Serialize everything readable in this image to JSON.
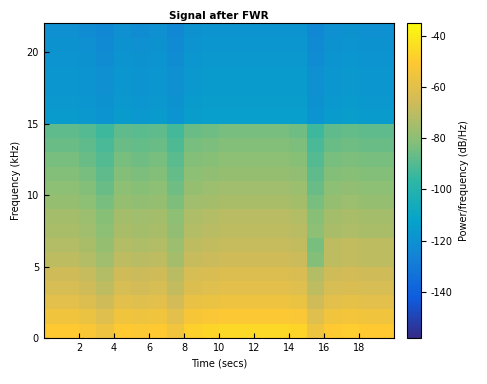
{
  "chart_data": {
    "type": "heatmap",
    "title": "Signal after FWR",
    "x_label": "Time (secs)",
    "y_label": "Frequency (kHz)",
    "xlim": [
      0,
      20
    ],
    "ylim": [
      0,
      22.05
    ],
    "xticks": [
      2,
      4,
      6,
      8,
      10,
      12,
      14,
      16,
      18
    ],
    "yticks": [
      0,
      5,
      10,
      15,
      20
    ],
    "time_edges": [
      0,
      1,
      2,
      3,
      4,
      5,
      6,
      7,
      8,
      9,
      10,
      11,
      12,
      13,
      14,
      15,
      16,
      17,
      18,
      19,
      20
    ],
    "frequency_edges": [
      0,
      1,
      2,
      3,
      4,
      5,
      6,
      7,
      8,
      9,
      10,
      11,
      12,
      13,
      14,
      15,
      16,
      17,
      18,
      19,
      20,
      21,
      22.05
    ],
    "cells": [
      [
        -50,
        -50,
        -52,
        -56,
        -50,
        -51,
        -50,
        -55,
        -48,
        -47,
        -46,
        -46,
        -46,
        -46,
        -47,
        -56,
        -50,
        -49,
        -50,
        -50
      ],
      [
        -55,
        -55,
        -57,
        -61,
        -55,
        -56,
        -55,
        -60,
        -53,
        -52,
        -51,
        -51,
        -51,
        -51,
        -52,
        -61,
        -55,
        -54,
        -55,
        -55
      ],
      [
        -60,
        -60,
        -62,
        -66,
        -60,
        -61,
        -60,
        -65,
        -58,
        -57,
        -56,
        -56,
        -56,
        -56,
        -57,
        -66,
        -60,
        -59,
        -60,
        -60
      ],
      [
        -64,
        -64,
        -66,
        -70,
        -64,
        -65,
        -64,
        -69,
        -62,
        -61,
        -60,
        -60,
        -60,
        -60,
        -61,
        -70,
        -64,
        -63,
        -64,
        -64
      ],
      [
        -66,
        -66,
        -68,
        -72,
        -66,
        -67,
        -66,
        -71,
        -64,
        -63,
        -62,
        -62,
        -62,
        -62,
        -63,
        -72,
        -66,
        -65,
        -66,
        -66
      ],
      [
        -70,
        -70,
        -72,
        -76,
        -70,
        -71,
        -70,
        -75,
        -68,
        -67,
        -66,
        -66,
        -66,
        -66,
        -67,
        -82,
        -70,
        -69,
        -70,
        -70
      ],
      [
        -72,
        -72,
        -74,
        -78,
        -72,
        -73,
        -72,
        -77,
        -70,
        -69,
        -68,
        -68,
        -68,
        -68,
        -69,
        -84,
        -70,
        -69,
        -70,
        -70
      ],
      [
        -74,
        -74,
        -76,
        -80,
        -74,
        -75,
        -74,
        -79,
        -72,
        -71,
        -70,
        -70,
        -70,
        -70,
        -71,
        -80,
        -74,
        -73,
        -74,
        -74
      ],
      [
        -75,
        -75,
        -77,
        -81,
        -75,
        -76,
        -75,
        -80,
        -73,
        -72,
        -71,
        -71,
        -71,
        -71,
        -72,
        -81,
        -75,
        -74,
        -75,
        -75
      ],
      [
        -78,
        -78,
        -80,
        -84,
        -78,
        -79,
        -78,
        -83,
        -76,
        -75,
        -74,
        -74,
        -74,
        -74,
        -75,
        -84,
        -78,
        -77,
        -78,
        -78
      ],
      [
        -80,
        -80,
        -82,
        -86,
        -80,
        -81,
        -80,
        -85,
        -78,
        -77,
        -76,
        -76,
        -76,
        -76,
        -77,
        -86,
        -80,
        -79,
        -80,
        -80
      ],
      [
        -82,
        -82,
        -84,
        -88,
        -82,
        -83,
        -82,
        -87,
        -80,
        -79,
        -78,
        -78,
        -78,
        -78,
        -79,
        -88,
        -82,
        -81,
        -82,
        -82
      ],
      [
        -84,
        -84,
        -86,
        -90,
        -84,
        -85,
        -84,
        -89,
        -82,
        -81,
        -80,
        -80,
        -80,
        -80,
        -81,
        -90,
        -84,
        -83,
        -84,
        -84
      ],
      [
        -86,
        -86,
        -88,
        -92,
        -86,
        -87,
        -86,
        -91,
        -84,
        -83,
        -82,
        -82,
        -82,
        -82,
        -83,
        -92,
        -86,
        -85,
        -86,
        -86
      ],
      [
        -88,
        -88,
        -90,
        -94,
        -88,
        -89,
        -88,
        -93,
        -86,
        -85,
        -84,
        -84,
        -84,
        -84,
        -85,
        -94,
        -88,
        -87,
        -88,
        -88
      ],
      [
        -116,
        -116,
        -117,
        -119,
        -116,
        -117,
        -116,
        -119,
        -115,
        -114,
        -114,
        -114,
        -114,
        -114,
        -114,
        -119,
        -116,
        -115,
        -116,
        -116
      ],
      [
        -117,
        -117,
        -118,
        -120,
        -117,
        -118,
        -117,
        -120,
        -116,
        -115,
        -115,
        -115,
        -115,
        -115,
        -115,
        -120,
        -117,
        -116,
        -117,
        -117
      ],
      [
        -118,
        -118,
        -119,
        -121,
        -118,
        -119,
        -118,
        -121,
        -117,
        -116,
        -116,
        -116,
        -116,
        -116,
        -116,
        -121,
        -118,
        -117,
        -118,
        -118
      ],
      [
        -118,
        -118,
        -119,
        -121,
        -118,
        -119,
        -118,
        -121,
        -117,
        -116,
        -116,
        -116,
        -116,
        -116,
        -116,
        -121,
        -118,
        -117,
        -118,
        -118
      ],
      [
        -119,
        -119,
        -120,
        -122,
        -119,
        -120,
        -119,
        -122,
        -118,
        -117,
        -117,
        -117,
        -117,
        -117,
        -117,
        -122,
        -119,
        -118,
        -119,
        -119
      ],
      [
        -120,
        -120,
        -121,
        -123,
        -120,
        -121,
        -120,
        -123,
        -119,
        -118,
        -118,
        -118,
        -118,
        -118,
        -118,
        -123,
        -120,
        -119,
        -120,
        -120
      ],
      [
        -121,
        -121,
        -122,
        -124,
        -121,
        -122,
        -121,
        -124,
        -120,
        -119,
        -119,
        -119,
        -119,
        -119,
        -119,
        -124,
        -121,
        -120,
        -121,
        -121
      ]
    ],
    "colorbar_label": "Power/frequency (dB/Hz)",
    "colorbar_range": [
      -158,
      -35
    ],
    "colorbar_ticks": [
      -140,
      -120,
      -100,
      -80,
      -60,
      -40
    ]
  }
}
